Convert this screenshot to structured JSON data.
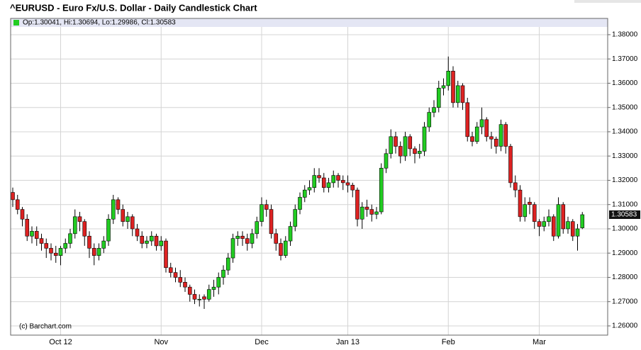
{
  "chart_data": {
    "type": "candlestick",
    "title": "^EURUSD - Euro Fx/U.S. Dollar - Daily Candlestick Chart",
    "legend_text": "Op:1.30041, Hi:1.30694, Lo:1.29986, Cl:1.30583",
    "annotation": "(c) Barchart.com",
    "up_color": "#22cc22",
    "down_color": "#dd2222",
    "grid": true,
    "ylim": [
      1.2562,
      1.3867
    ],
    "yticks": [
      {
        "value": 1.26,
        "label": "1.26000"
      },
      {
        "value": 1.27,
        "label": "1.27000"
      },
      {
        "value": 1.28,
        "label": "1.28000"
      },
      {
        "value": 1.29,
        "label": "1.29000"
      },
      {
        "value": 1.3,
        "label": "1.30000"
      },
      {
        "value": 1.31,
        "label": "1.31000"
      },
      {
        "value": 1.32,
        "label": "1.32000"
      },
      {
        "value": 1.33,
        "label": "1.33000"
      },
      {
        "value": 1.34,
        "label": "1.34000"
      },
      {
        "value": 1.35,
        "label": "1.35000"
      },
      {
        "value": 1.36,
        "label": "1.36000"
      },
      {
        "value": 1.37,
        "label": "1.37000"
      },
      {
        "value": 1.38,
        "label": "1.38000"
      }
    ],
    "categories": [
      null,
      null,
      null,
      null,
      null,
      null,
      null,
      null,
      null,
      null,
      "Oct 12",
      null,
      null,
      null,
      null,
      null,
      null,
      null,
      null,
      null,
      null,
      null,
      null,
      null,
      null,
      null,
      null,
      null,
      null,
      null,
      null,
      "Nov",
      null,
      null,
      null,
      null,
      null,
      null,
      null,
      null,
      null,
      null,
      null,
      null,
      null,
      null,
      null,
      null,
      null,
      null,
      null,
      null,
      "Dec",
      null,
      null,
      null,
      null,
      null,
      null,
      null,
      null,
      null,
      null,
      null,
      null,
      null,
      null,
      null,
      null,
      null,
      "Jan 13",
      null,
      null,
      null,
      null,
      null,
      null,
      null,
      null,
      null,
      null,
      null,
      null,
      null,
      null,
      null,
      null,
      null,
      null,
      null,
      null,
      "Feb",
      null,
      null,
      null,
      null,
      null,
      null,
      null,
      null,
      null,
      null,
      null,
      null,
      null,
      null,
      null,
      null,
      null,
      null,
      "Mar",
      null,
      null,
      null,
      null,
      null,
      null,
      null,
      null,
      null
    ],
    "open": [
      1.315,
      1.312,
      1.308,
      1.304,
      1.297,
      1.299,
      1.296,
      1.294,
      1.292,
      1.29,
      1.289,
      1.292,
      1.294,
      1.298,
      1.305,
      1.303,
      1.297,
      1.292,
      1.289,
      1.292,
      1.295,
      1.304,
      1.312,
      1.308,
      1.303,
      1.305,
      1.3,
      1.297,
      1.294,
      1.295,
      1.297,
      1.293,
      1.295,
      1.284,
      1.282,
      1.28,
      1.278,
      1.276,
      1.273,
      1.271,
      1.272,
      1.271,
      1.275,
      1.276,
      1.28,
      1.283,
      1.288,
      1.296,
      1.297,
      1.296,
      1.294,
      1.298,
      1.303,
      1.31,
      1.308,
      1.298,
      1.294,
      1.289,
      1.295,
      1.301,
      1.308,
      1.313,
      1.316,
      1.317,
      1.322,
      1.321,
      1.317,
      1.319,
      1.322,
      1.32,
      1.319,
      1.318,
      1.316,
      1.304,
      1.309,
      1.308,
      1.306,
      1.307,
      1.325,
      1.331,
      1.338,
      1.334,
      1.33,
      1.338,
      1.333,
      1.331,
      1.332,
      1.342,
      1.348,
      1.35,
      1.358,
      1.359,
      1.365,
      1.352,
      1.359,
      1.352,
      1.338,
      1.336,
      1.342,
      1.345,
      1.338,
      1.337,
      1.334,
      1.343,
      1.334,
      1.319,
      1.316,
      1.305,
      1.311,
      1.31,
      1.303,
      1.301,
      1.303,
      1.305,
      1.297,
      1.31,
      1.3,
      1.303,
      1.297,
      1.30041
    ],
    "high": [
      1.317,
      1.314,
      1.309,
      1.306,
      1.301,
      1.301,
      1.298,
      1.296,
      1.294,
      1.293,
      1.293,
      1.296,
      1.3,
      1.308,
      1.307,
      1.304,
      1.299,
      1.294,
      1.294,
      1.297,
      1.306,
      1.314,
      1.313,
      1.31,
      1.307,
      1.306,
      1.302,
      1.299,
      1.297,
      1.299,
      1.298,
      1.297,
      1.296,
      1.286,
      1.284,
      1.283,
      1.28,
      1.277,
      1.275,
      1.273,
      1.273,
      1.277,
      1.279,
      1.282,
      1.285,
      1.29,
      1.298,
      1.299,
      1.299,
      1.298,
      1.3,
      1.305,
      1.313,
      1.312,
      1.31,
      1.3,
      1.296,
      1.297,
      1.303,
      1.31,
      1.315,
      1.318,
      1.32,
      1.325,
      1.325,
      1.323,
      1.321,
      1.324,
      1.323,
      1.322,
      1.322,
      1.319,
      1.317,
      1.311,
      1.312,
      1.31,
      1.309,
      1.327,
      1.333,
      1.341,
      1.34,
      1.336,
      1.34,
      1.339,
      1.334,
      1.335,
      1.344,
      1.35,
      1.353,
      1.361,
      1.362,
      1.371,
      1.367,
      1.361,
      1.36,
      1.354,
      1.34,
      1.344,
      1.35,
      1.346,
      1.34,
      1.338,
      1.345,
      1.344,
      1.335,
      1.322,
      1.318,
      1.313,
      1.313,
      1.311,
      1.304,
      1.305,
      1.308,
      1.306,
      1.313,
      1.311,
      1.305,
      1.304,
      1.302,
      1.30694
    ],
    "low": [
      1.309,
      1.306,
      1.301,
      1.295,
      1.294,
      1.293,
      1.291,
      1.288,
      1.287,
      1.286,
      1.285,
      1.29,
      1.292,
      1.296,
      1.299,
      1.293,
      1.288,
      1.285,
      1.287,
      1.29,
      1.293,
      1.302,
      1.306,
      1.301,
      1.3,
      1.297,
      1.295,
      1.292,
      1.292,
      1.293,
      1.291,
      1.291,
      1.282,
      1.28,
      1.278,
      1.276,
      1.274,
      1.27,
      1.269,
      1.268,
      1.267,
      1.27,
      1.272,
      1.273,
      1.277,
      1.281,
      1.286,
      1.293,
      1.293,
      1.291,
      1.292,
      1.296,
      1.301,
      1.305,
      1.296,
      1.291,
      1.287,
      1.288,
      1.293,
      1.299,
      1.306,
      1.311,
      1.314,
      1.315,
      1.319,
      1.315,
      1.315,
      1.317,
      1.317,
      1.316,
      1.315,
      1.313,
      1.301,
      1.3,
      1.305,
      1.303,
      1.304,
      1.306,
      1.323,
      1.329,
      1.331,
      1.327,
      1.328,
      1.33,
      1.327,
      1.329,
      1.33,
      1.34,
      1.346,
      1.348,
      1.355,
      1.357,
      1.35,
      1.35,
      1.349,
      1.336,
      1.334,
      1.335,
      1.339,
      1.336,
      1.333,
      1.331,
      1.332,
      1.331,
      1.317,
      1.313,
      1.303,
      1.303,
      1.306,
      1.3,
      1.297,
      1.299,
      1.301,
      1.295,
      1.296,
      1.298,
      1.298,
      1.295,
      1.291,
      1.29986
    ],
    "close": [
      1.312,
      1.308,
      1.304,
      1.297,
      1.299,
      1.296,
      1.294,
      1.292,
      1.29,
      1.289,
      1.292,
      1.294,
      1.298,
      1.305,
      1.303,
      1.297,
      1.292,
      1.289,
      1.292,
      1.295,
      1.304,
      1.312,
      1.308,
      1.303,
      1.305,
      1.3,
      1.297,
      1.294,
      1.295,
      1.297,
      1.293,
      1.295,
      1.284,
      1.282,
      1.28,
      1.278,
      1.276,
      1.273,
      1.271,
      1.271,
      1.271,
      1.275,
      1.276,
      1.28,
      1.283,
      1.288,
      1.296,
      1.297,
      1.296,
      1.294,
      1.298,
      1.303,
      1.31,
      1.308,
      1.298,
      1.294,
      1.289,
      1.295,
      1.301,
      1.308,
      1.313,
      1.316,
      1.317,
      1.322,
      1.321,
      1.317,
      1.319,
      1.322,
      1.32,
      1.319,
      1.318,
      1.316,
      1.304,
      1.309,
      1.308,
      1.306,
      1.307,
      1.325,
      1.331,
      1.338,
      1.334,
      1.33,
      1.338,
      1.333,
      1.331,
      1.332,
      1.342,
      1.348,
      1.35,
      1.358,
      1.359,
      1.365,
      1.352,
      1.359,
      1.352,
      1.338,
      1.336,
      1.342,
      1.345,
      1.338,
      1.337,
      1.334,
      1.343,
      1.334,
      1.319,
      1.316,
      1.305,
      1.31,
      1.31,
      1.303,
      1.301,
      1.303,
      1.305,
      1.297,
      1.31,
      1.3,
      1.303,
      1.297,
      1.3,
      1.30583
    ]
  }
}
